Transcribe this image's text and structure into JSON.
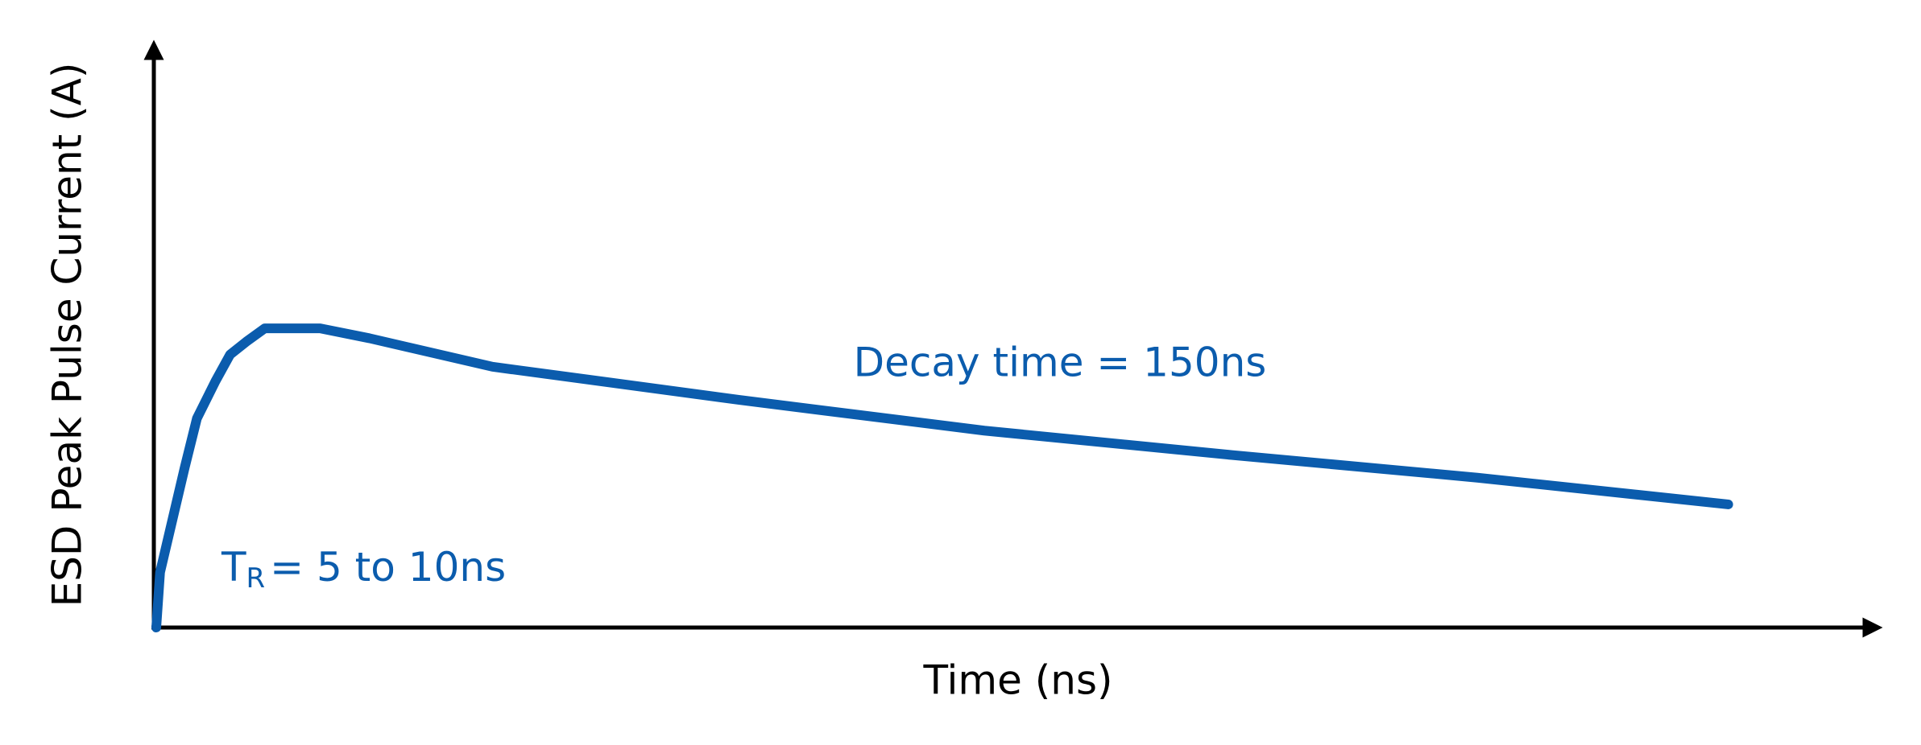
{
  "chart_data": {
    "type": "line",
    "x_label": "Time (ns)",
    "y_label": "ESD Peak Pulse Current (A)",
    "xlim": [
      0,
      100
    ],
    "ylim": [
      0,
      100
    ],
    "x": [
      0.14,
      0.36,
      1.78,
      2.49,
      3.56,
      4.41,
      5.34,
      6.41,
      9.61,
      12.46,
      19.57,
      33.8,
      48.0,
      62.3,
      76.5,
      91.0
    ],
    "series": [
      {
        "color": "#0b5cad",
        "values": [
          0,
          9.5,
          27.5,
          36,
          42.4,
          47,
          49.2,
          51.5,
          51.5,
          49.8,
          44.9,
          39.2,
          33.9,
          29.7,
          25.8,
          21.2
        ]
      }
    ],
    "annotations": [
      {
        "text": "Decay time = 150ns"
      },
      {
        "text": "T",
        "subscript": "R",
        "rest": "= 5 to 10ns"
      }
    ]
  }
}
